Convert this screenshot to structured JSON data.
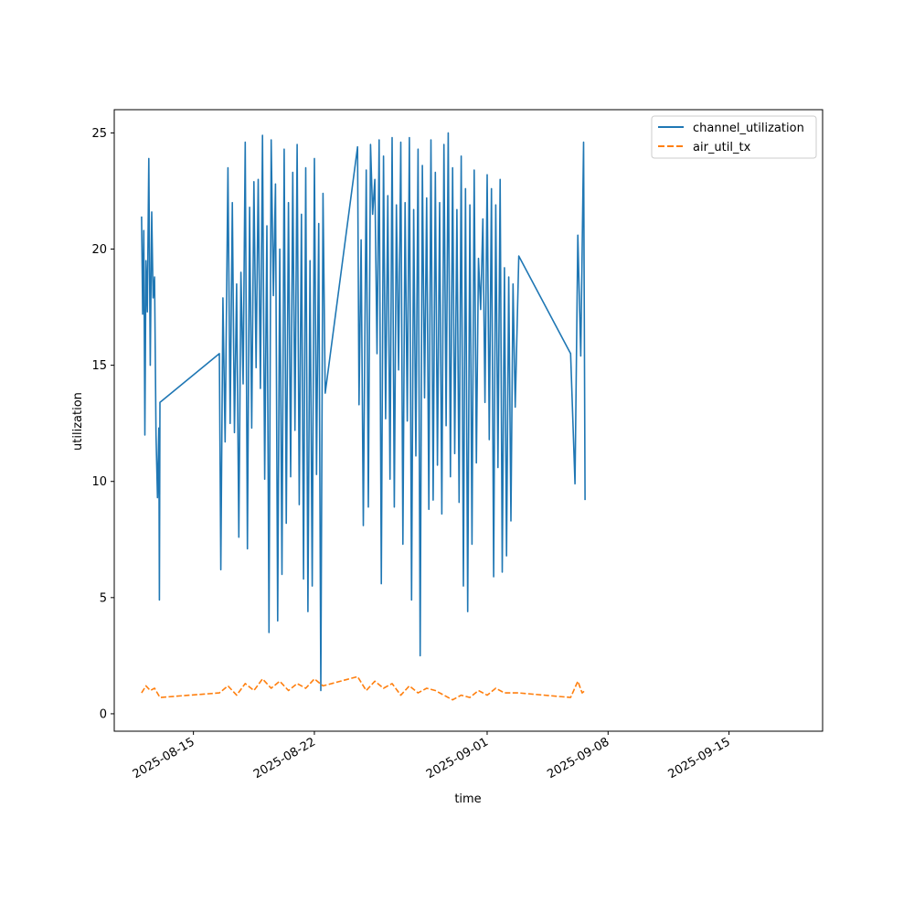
{
  "chart_data": {
    "type": "line",
    "title": "",
    "xlabel": "time",
    "ylabel": "utilization",
    "x_ticks": [
      "2025-08-15",
      "2025-08-22",
      "2025-09-01",
      "2025-09-08",
      "2025-09-15"
    ],
    "y_ticks": [
      0,
      5,
      10,
      15,
      20,
      25
    ],
    "xlim": [
      "2025-08-10T10:00",
      "2025-09-20T10:00"
    ],
    "ylim": [
      -0.75,
      26
    ],
    "legend_position": "top-right",
    "grid": false,
    "series": [
      {
        "name": "channel_utilization",
        "color": "#1f77b4",
        "style": "solid",
        "segments": [
          [
            [
              "2025-08-12T00:00",
              21.4
            ],
            [
              "2025-08-12T01:30",
              17.2
            ],
            [
              "2025-08-12T03:00",
              20.8
            ],
            [
              "2025-08-12T04:30",
              12.0
            ],
            [
              "2025-08-12T06:00",
              19.5
            ],
            [
              "2025-08-12T08:00",
              17.3
            ],
            [
              "2025-08-12T10:00",
              23.9
            ],
            [
              "2025-08-12T12:00",
              15.0
            ],
            [
              "2025-08-12T14:00",
              21.6
            ],
            [
              "2025-08-12T16:00",
              17.9
            ],
            [
              "2025-08-12T18:00",
              18.8
            ],
            [
              "2025-08-12T20:00",
              12.0
            ],
            [
              "2025-08-12T22:00",
              9.3
            ],
            [
              "2025-08-13T00:00",
              12.3
            ],
            [
              "2025-08-13T00:40",
              4.9
            ],
            [
              "2025-08-13T01:30",
              13.4
            ],
            [
              "2025-08-16T12:00",
              15.5
            ],
            [
              "2025-08-16T14:00",
              6.2
            ],
            [
              "2025-08-16T17:00",
              17.9
            ],
            [
              "2025-08-16T20:00",
              11.7
            ],
            [
              "2025-08-17T00:00",
              23.5
            ],
            [
              "2025-08-17T03:00",
              12.5
            ],
            [
              "2025-08-17T06:00",
              22.0
            ],
            [
              "2025-08-17T09:00",
              12.1
            ],
            [
              "2025-08-17T12:00",
              18.5
            ],
            [
              "2025-08-17T15:00",
              7.6
            ],
            [
              "2025-08-17T18:00",
              19.0
            ],
            [
              "2025-08-17T21:00",
              14.2
            ],
            [
              "2025-08-18T00:00",
              24.6
            ],
            [
              "2025-08-18T03:00",
              7.1
            ],
            [
              "2025-08-18T06:00",
              21.8
            ],
            [
              "2025-08-18T09:00",
              12.3
            ],
            [
              "2025-08-18T12:00",
              22.9
            ],
            [
              "2025-08-18T15:00",
              14.9
            ],
            [
              "2025-08-18T18:00",
              23.0
            ],
            [
              "2025-08-18T21:00",
              14.0
            ],
            [
              "2025-08-19T00:00",
              24.9
            ],
            [
              "2025-08-19T03:00",
              10.1
            ],
            [
              "2025-08-19T06:00",
              21.0
            ],
            [
              "2025-08-19T09:00",
              3.5
            ],
            [
              "2025-08-19T12:00",
              24.7
            ],
            [
              "2025-08-19T15:00",
              18.0
            ],
            [
              "2025-08-19T18:00",
              22.8
            ],
            [
              "2025-08-19T21:00",
              4.0
            ],
            [
              "2025-08-20T00:00",
              20.0
            ],
            [
              "2025-08-20T03:00",
              6.0
            ],
            [
              "2025-08-20T06:00",
              24.3
            ],
            [
              "2025-08-20T09:00",
              8.2
            ],
            [
              "2025-08-20T12:00",
              22.0
            ],
            [
              "2025-08-20T15:00",
              10.2
            ],
            [
              "2025-08-20T18:00",
              23.3
            ],
            [
              "2025-08-20T21:00",
              12.2
            ],
            [
              "2025-08-21T00:00",
              24.5
            ],
            [
              "2025-08-21T03:00",
              9.0
            ],
            [
              "2025-08-21T06:00",
              21.5
            ],
            [
              "2025-08-21T09:00",
              5.8
            ],
            [
              "2025-08-21T12:00",
              23.5
            ],
            [
              "2025-08-21T15:00",
              4.4
            ],
            [
              "2025-08-21T18:00",
              19.5
            ],
            [
              "2025-08-21T21:00",
              5.5
            ],
            [
              "2025-08-22T00:00",
              23.9
            ],
            [
              "2025-08-22T03:00",
              10.3
            ],
            [
              "2025-08-22T06:00",
              21.1
            ],
            [
              "2025-08-22T09:00",
              1.0
            ],
            [
              "2025-08-22T12:00",
              22.4
            ],
            [
              "2025-08-22T15:00",
              13.8
            ],
            [
              "2025-08-24T12:00",
              24.4
            ],
            [
              "2025-08-24T14:00",
              13.3
            ],
            [
              "2025-08-24T17:00",
              20.4
            ],
            [
              "2025-08-24T20:00",
              8.1
            ],
            [
              "2025-08-25T00:00",
              23.4
            ],
            [
              "2025-08-25T03:00",
              8.9
            ],
            [
              "2025-08-25T06:00",
              24.5
            ],
            [
              "2025-08-25T09:00",
              21.5
            ],
            [
              "2025-08-25T12:00",
              23.0
            ],
            [
              "2025-08-25T15:00",
              15.5
            ],
            [
              "2025-08-25T18:00",
              24.7
            ],
            [
              "2025-08-25T21:00",
              5.6
            ],
            [
              "2025-08-26T00:00",
              24.0
            ],
            [
              "2025-08-26T03:00",
              12.7
            ],
            [
              "2025-08-26T06:00",
              22.3
            ],
            [
              "2025-08-26T09:00",
              10.1
            ],
            [
              "2025-08-26T12:00",
              24.8
            ],
            [
              "2025-08-26T15:00",
              8.9
            ],
            [
              "2025-08-26T18:00",
              21.9
            ],
            [
              "2025-08-26T21:00",
              14.8
            ],
            [
              "2025-08-27T00:00",
              24.6
            ],
            [
              "2025-08-27T03:00",
              7.3
            ],
            [
              "2025-08-27T06:00",
              22.0
            ],
            [
              "2025-08-27T09:00",
              12.6
            ],
            [
              "2025-08-27T12:00",
              24.8
            ],
            [
              "2025-08-27T15:00",
              4.9
            ],
            [
              "2025-08-27T18:00",
              21.7
            ],
            [
              "2025-08-27T21:00",
              11.1
            ],
            [
              "2025-08-28T00:00",
              24.3
            ],
            [
              "2025-08-28T03:00",
              2.5
            ],
            [
              "2025-08-28T06:00",
              23.6
            ],
            [
              "2025-08-28T09:00",
              13.6
            ],
            [
              "2025-08-28T12:00",
              22.2
            ],
            [
              "2025-08-28T15:00",
              8.8
            ],
            [
              "2025-08-28T18:00",
              24.7
            ],
            [
              "2025-08-28T21:00",
              9.2
            ],
            [
              "2025-08-29T00:00",
              23.3
            ],
            [
              "2025-08-29T03:00",
              10.7
            ],
            [
              "2025-08-29T06:00",
              22.0
            ],
            [
              "2025-08-29T09:00",
              8.6
            ],
            [
              "2025-08-29T12:00",
              24.5
            ],
            [
              "2025-08-29T15:00",
              12.4
            ],
            [
              "2025-08-29T18:00",
              25.0
            ],
            [
              "2025-08-29T21:00",
              10.2
            ],
            [
              "2025-08-30T00:00",
              23.5
            ],
            [
              "2025-08-30T03:00",
              11.2
            ],
            [
              "2025-08-30T06:00",
              21.7
            ],
            [
              "2025-08-30T09:00",
              9.1
            ],
            [
              "2025-08-30T12:00",
              24.0
            ],
            [
              "2025-08-30T15:00",
              5.5
            ],
            [
              "2025-08-30T18:00",
              22.6
            ],
            [
              "2025-08-30T21:00",
              4.4
            ],
            [
              "2025-08-31T00:00",
              21.9
            ],
            [
              "2025-08-31T03:00",
              7.3
            ],
            [
              "2025-08-31T06:00",
              23.4
            ],
            [
              "2025-08-31T09:00",
              10.8
            ],
            [
              "2025-08-31T12:00",
              19.6
            ],
            [
              "2025-08-31T15:00",
              17.4
            ],
            [
              "2025-08-31T18:00",
              21.3
            ],
            [
              "2025-08-31T21:00",
              13.4
            ],
            [
              "2025-09-01T00:00",
              23.2
            ],
            [
              "2025-09-01T03:00",
              11.8
            ],
            [
              "2025-09-01T06:00",
              22.6
            ],
            [
              "2025-09-01T09:00",
              5.9
            ],
            [
              "2025-09-01T12:00",
              21.9
            ],
            [
              "2025-09-01T15:00",
              10.6
            ],
            [
              "2025-09-01T18:00",
              23.0
            ],
            [
              "2025-09-01T21:00",
              6.1
            ],
            [
              "2025-09-02T00:00",
              19.2
            ],
            [
              "2025-09-02T03:00",
              6.8
            ],
            [
              "2025-09-02T06:00",
              18.8
            ],
            [
              "2025-09-02T09:00",
              8.3
            ],
            [
              "2025-09-02T12:00",
              18.5
            ],
            [
              "2025-09-02T15:00",
              13.2
            ],
            [
              "2025-09-02T20:00",
              19.7
            ],
            [
              "2025-09-05T20:00",
              15.5
            ],
            [
              "2025-09-06T02:00",
              9.9
            ],
            [
              "2025-09-06T06:00",
              20.6
            ],
            [
              "2025-09-06T10:00",
              15.4
            ],
            [
              "2025-09-06T14:00",
              24.6
            ],
            [
              "2025-09-06T16:00",
              9.2
            ]
          ]
        ]
      },
      {
        "name": "air_util_tx",
        "color": "#ff7f0e",
        "style": "dashed",
        "segments": [
          [
            [
              "2025-08-12T00:00",
              0.9
            ],
            [
              "2025-08-12T06:00",
              1.2
            ],
            [
              "2025-08-12T12:00",
              1.0
            ],
            [
              "2025-08-12T18:00",
              1.1
            ],
            [
              "2025-08-13T01:30",
              0.7
            ],
            [
              "2025-08-16T12:00",
              0.9
            ],
            [
              "2025-08-17T00:00",
              1.2
            ],
            [
              "2025-08-17T12:00",
              0.8
            ],
            [
              "2025-08-18T00:00",
              1.3
            ],
            [
              "2025-08-18T12:00",
              1.0
            ],
            [
              "2025-08-19T00:00",
              1.5
            ],
            [
              "2025-08-19T12:00",
              1.1
            ],
            [
              "2025-08-20T00:00",
              1.4
            ],
            [
              "2025-08-20T12:00",
              1.0
            ],
            [
              "2025-08-21T00:00",
              1.3
            ],
            [
              "2025-08-21T12:00",
              1.1
            ],
            [
              "2025-08-22T00:00",
              1.5
            ],
            [
              "2025-08-22T12:00",
              1.2
            ],
            [
              "2025-08-24T12:00",
              1.6
            ],
            [
              "2025-08-25T00:00",
              1.0
            ],
            [
              "2025-08-25T12:00",
              1.4
            ],
            [
              "2025-08-26T00:00",
              1.1
            ],
            [
              "2025-08-26T12:00",
              1.3
            ],
            [
              "2025-08-27T00:00",
              0.8
            ],
            [
              "2025-08-27T12:00",
              1.2
            ],
            [
              "2025-08-28T00:00",
              0.9
            ],
            [
              "2025-08-28T12:00",
              1.1
            ],
            [
              "2025-08-29T00:00",
              1.0
            ],
            [
              "2025-08-29T12:00",
              0.8
            ],
            [
              "2025-08-30T00:00",
              0.6
            ],
            [
              "2025-08-30T12:00",
              0.8
            ],
            [
              "2025-08-31T00:00",
              0.7
            ],
            [
              "2025-08-31T12:00",
              1.0
            ],
            [
              "2025-09-01T00:00",
              0.8
            ],
            [
              "2025-09-01T12:00",
              1.1
            ],
            [
              "2025-09-02T00:00",
              0.9
            ],
            [
              "2025-09-02T20:00",
              0.9
            ],
            [
              "2025-09-05T20:00",
              0.7
            ],
            [
              "2025-09-06T06:00",
              1.4
            ],
            [
              "2025-09-06T12:00",
              0.9
            ],
            [
              "2025-09-06T16:00",
              1.0
            ]
          ]
        ]
      }
    ]
  }
}
